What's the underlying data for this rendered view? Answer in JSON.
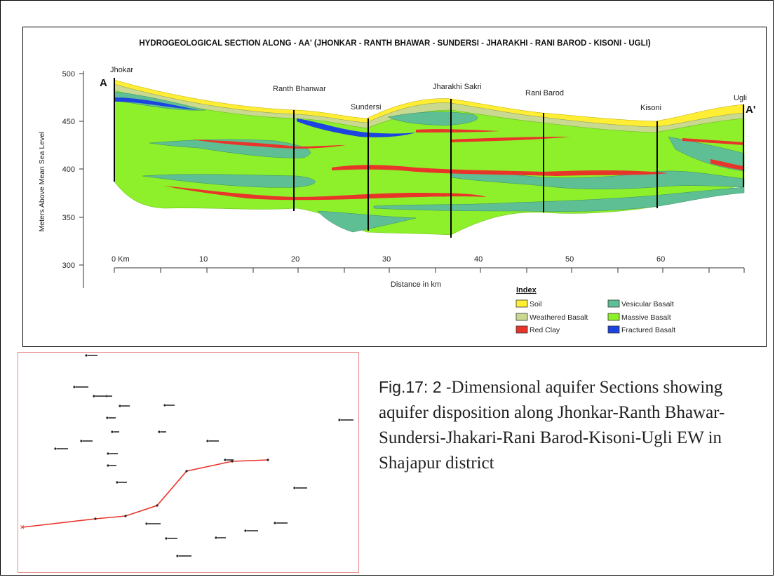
{
  "section": {
    "title": "HYDROGEOLOGICAL SECTION ALONG - AA' (JHONKAR - RANTH BHAWAR - SUNDERSI - JHARAKHI - RANI BAROD - KISONI - UGLI)",
    "y_axis_label": "Meters Above Mean Sea Level",
    "x_axis_label": "Distance in km",
    "y_ticks": [
      "500",
      "450",
      "400",
      "350",
      "300"
    ],
    "x_ticks": [
      "0 Km",
      "10",
      "20",
      "30",
      "40",
      "50",
      "60"
    ],
    "end_labels": {
      "start": "A",
      "end": "A'"
    },
    "wells": [
      "Jhokar",
      "Ranth Bhanwar",
      "Sundersi",
      "Jharakhi Sakri",
      "Rani Barod",
      "Kisoni",
      "Ugli"
    ]
  },
  "legend": {
    "title": "Index",
    "items": [
      {
        "label": "Soil",
        "color": "#ffee33"
      },
      {
        "label": "Weathered Basalt",
        "color": "#c9d98f"
      },
      {
        "label": "Red Clay",
        "color": "#e8352a"
      },
      {
        "label": "Vesicular Basalt",
        "color": "#5fbf94"
      },
      {
        "label": "Massive Basalt",
        "color": "#8ef02a"
      },
      {
        "label": "Fractured Basalt",
        "color": "#1d44e0"
      }
    ]
  },
  "caption": {
    "fig_label": "Fig.17: 2 -",
    "text": "Dimensional aquifer Sections showing aquifer disposition along Jhonkar-Ranth Bhawar-Sundersi-Jhakari-Rani Barod-Kisoni-Ugli EW in Shajapur district"
  },
  "map": {
    "route_color": "#e8352a"
  }
}
